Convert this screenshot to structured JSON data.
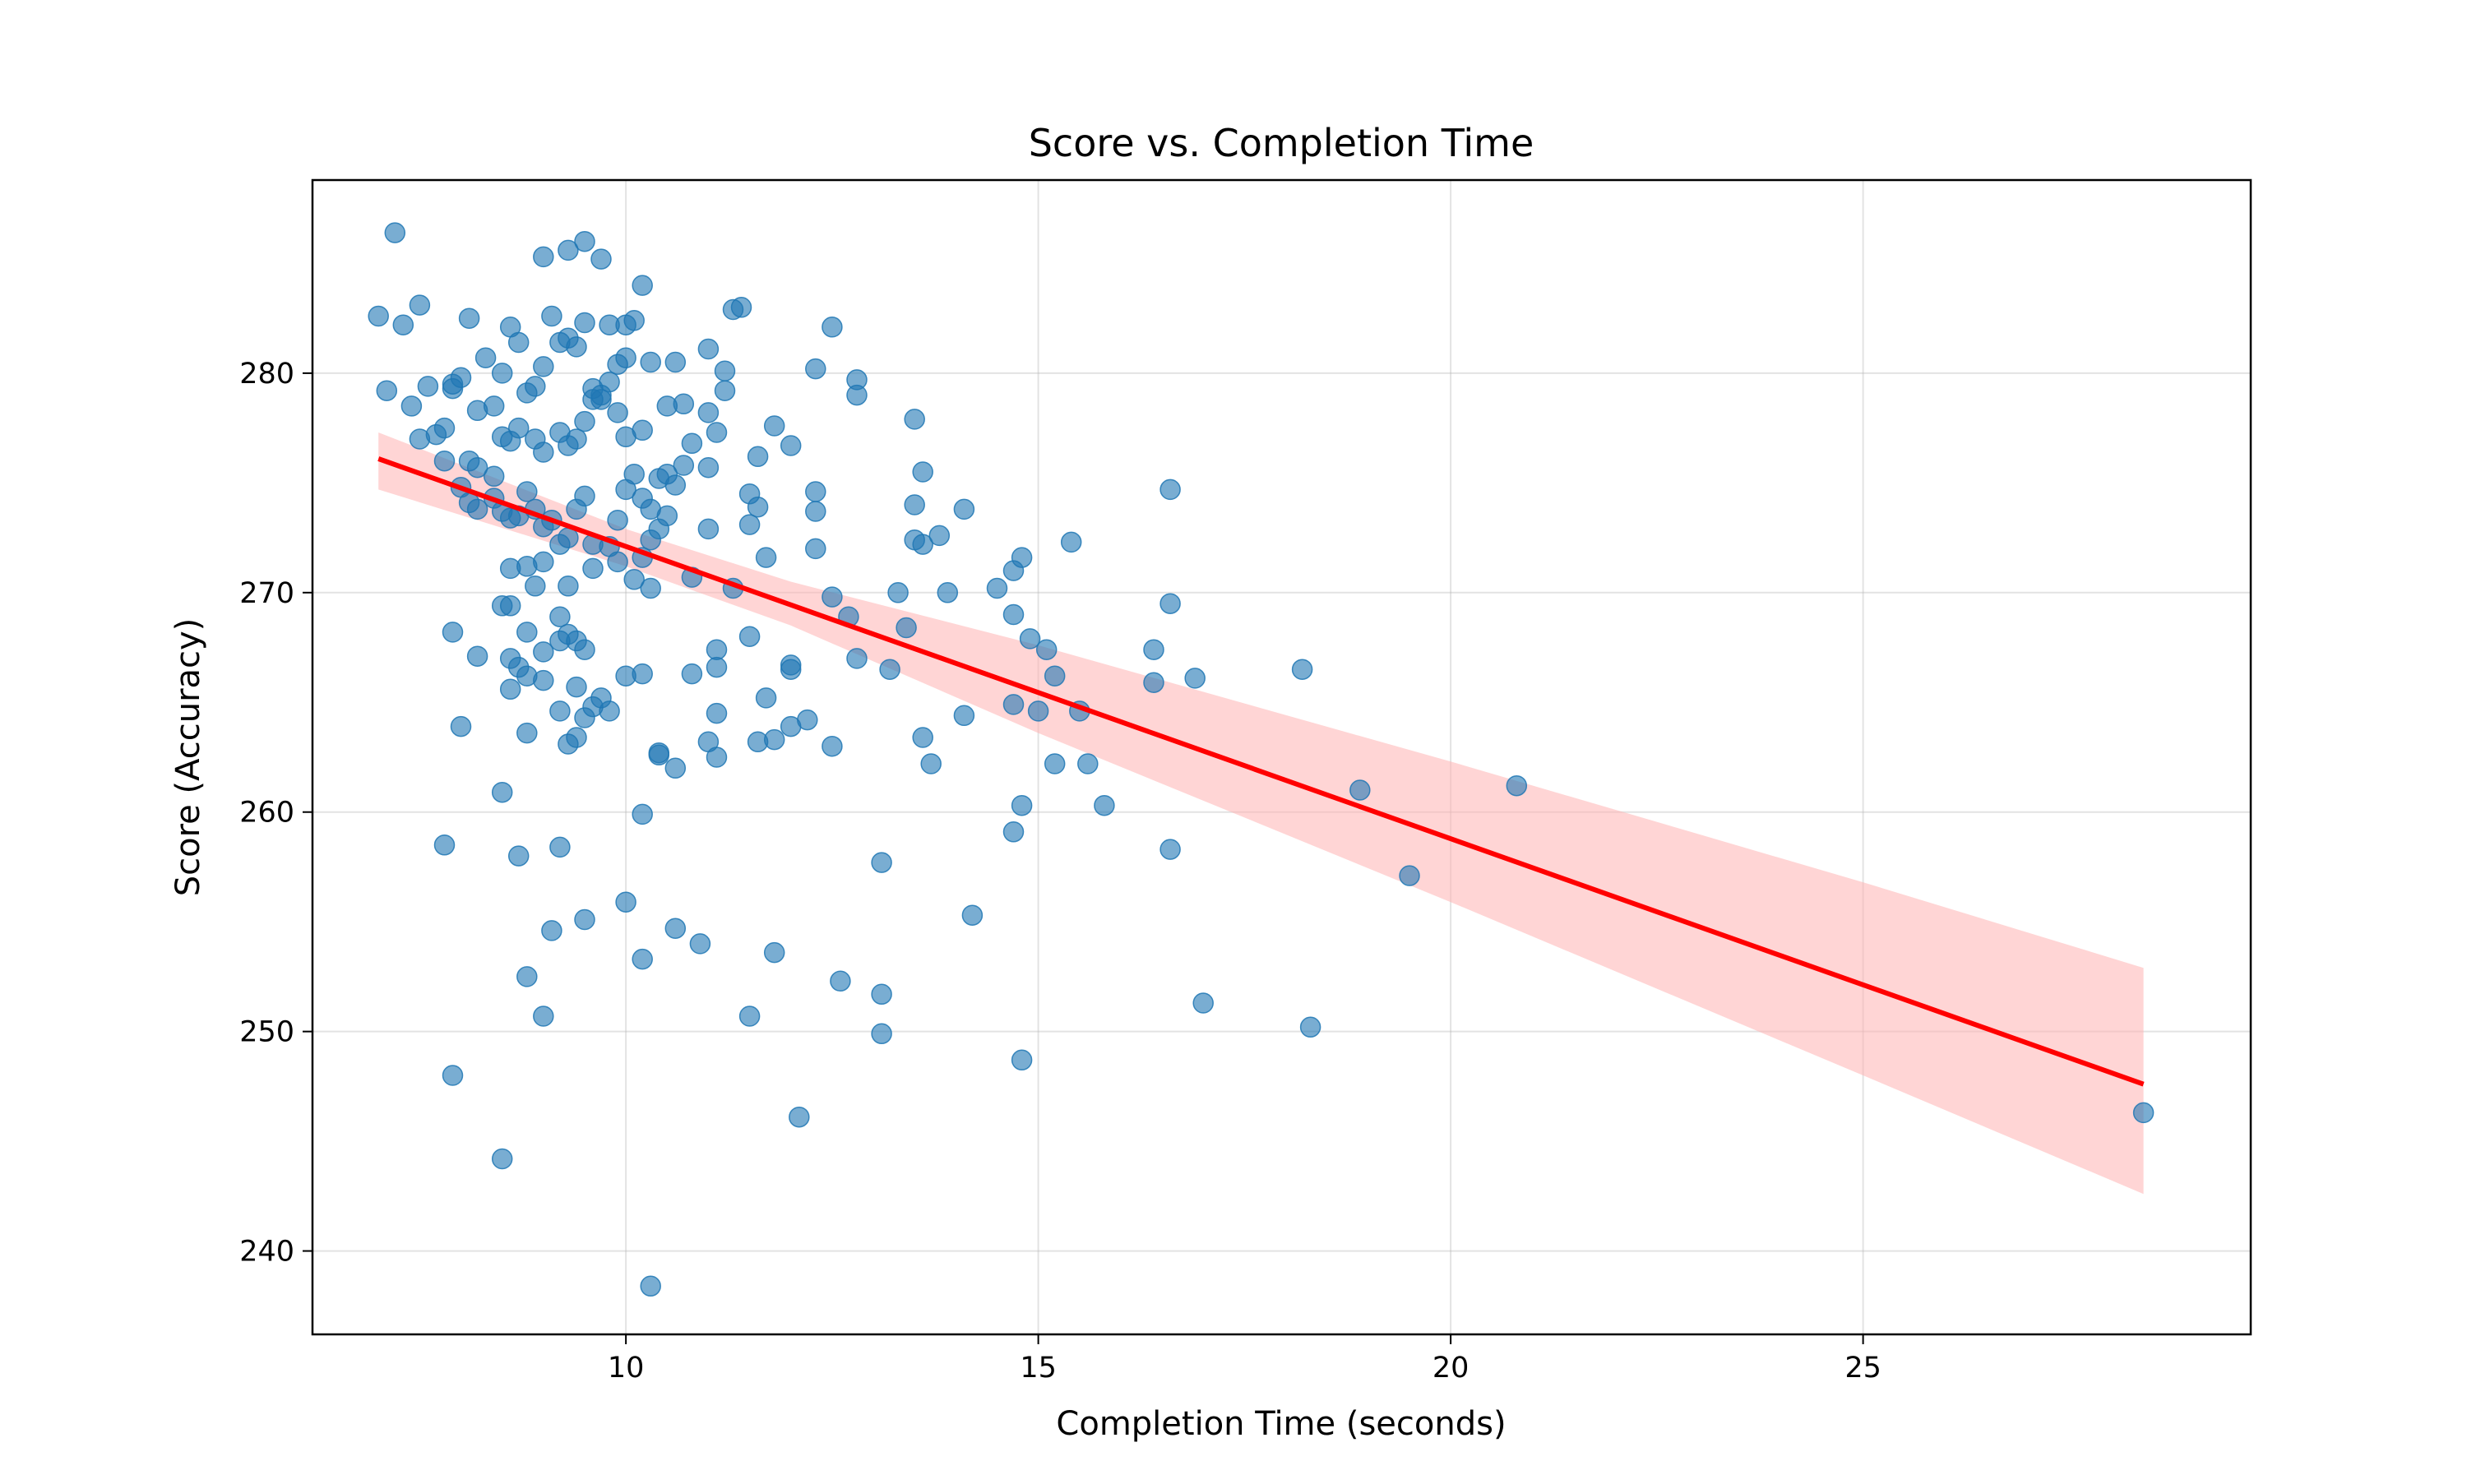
{
  "chart_data": {
    "type": "scatter",
    "title": "Score vs. Completion Time",
    "xlabel": "Completion Time (seconds)",
    "ylabel": "Score (Accuracy)",
    "xlim": [
      6.2,
      29.7
    ],
    "ylim": [
      236.2,
      288.8
    ],
    "xticks": [
      10,
      15,
      20,
      25
    ],
    "yticks": [
      240,
      250,
      260,
      270,
      280
    ],
    "grid": true,
    "colors": {
      "points": "#1f77b4",
      "fit_line": "#ff0000",
      "confidence_band": "#ffb3b3"
    },
    "regression": {
      "x_start": 7.0,
      "y_start": 276.1,
      "x_end": 28.4,
      "y_end": 247.6,
      "band_upper": [
        [
          7.0,
          277.3
        ],
        [
          10.0,
          272.9
        ],
        [
          12.0,
          270.5
        ],
        [
          15.0,
          267.6
        ],
        [
          20.0,
          262.3
        ],
        [
          25.0,
          256.8
        ],
        [
          28.4,
          252.9
        ]
      ],
      "band_lower": [
        [
          7.0,
          274.7
        ],
        [
          10.0,
          271.2
        ],
        [
          12.0,
          268.5
        ],
        [
          15.0,
          263.6
        ],
        [
          20.0,
          255.9
        ],
        [
          25.0,
          248.0
        ],
        [
          28.4,
          242.6
        ]
      ]
    },
    "points": [
      [
        7.0,
        282.6
      ],
      [
        7.2,
        286.4
      ],
      [
        7.3,
        282.2
      ],
      [
        7.5,
        283.1
      ],
      [
        7.1,
        279.2
      ],
      [
        7.4,
        278.5
      ],
      [
        7.5,
        277.0
      ],
      [
        7.7,
        277.2
      ],
      [
        7.8,
        277.5
      ],
      [
        7.9,
        279.5
      ],
      [
        7.6,
        279.4
      ],
      [
        7.9,
        279.3
      ],
      [
        8.0,
        279.8
      ],
      [
        8.1,
        282.5
      ],
      [
        8.3,
        280.7
      ],
      [
        8.2,
        278.3
      ],
      [
        8.4,
        278.5
      ],
      [
        8.5,
        280.0
      ],
      [
        8.6,
        282.1
      ],
      [
        8.7,
        281.4
      ],
      [
        8.8,
        279.1
      ],
      [
        8.9,
        279.4
      ],
      [
        9.0,
        280.3
      ],
      [
        9.1,
        282.6
      ],
      [
        9.2,
        281.4
      ],
      [
        9.3,
        281.6
      ],
      [
        9.4,
        281.2
      ],
      [
        9.5,
        282.3
      ],
      [
        9.6,
        279.3
      ],
      [
        9.7,
        278.8
      ],
      [
        9.8,
        279.6
      ],
      [
        9.9,
        280.4
      ],
      [
        10.0,
        280.7
      ],
      [
        10.1,
        282.4
      ],
      [
        10.2,
        284.0
      ],
      [
        10.3,
        280.5
      ],
      [
        9.0,
        285.3
      ],
      [
        9.3,
        285.6
      ],
      [
        9.5,
        286.0
      ],
      [
        9.7,
        285.2
      ],
      [
        10.0,
        282.2
      ],
      [
        9.8,
        282.2
      ],
      [
        10.6,
        280.5
      ],
      [
        11.0,
        281.1
      ],
      [
        11.2,
        280.1
      ],
      [
        11.3,
        282.9
      ],
      [
        11.4,
        283.0
      ],
      [
        11.2,
        279.2
      ],
      [
        10.5,
        278.5
      ],
      [
        10.7,
        278.6
      ],
      [
        12.3,
        280.2
      ],
      [
        12.5,
        282.1
      ],
      [
        12.8,
        279.7
      ],
      [
        12.8,
        279.0
      ],
      [
        13.5,
        277.9
      ],
      [
        12.0,
        276.7
      ],
      [
        11.8,
        277.6
      ],
      [
        11.6,
        276.2
      ],
      [
        11.1,
        277.3
      ],
      [
        11.0,
        278.2
      ],
      [
        8.1,
        276.0
      ],
      [
        8.2,
        275.7
      ],
      [
        8.4,
        275.3
      ],
      [
        8.5,
        277.1
      ],
      [
        8.7,
        277.5
      ],
      [
        8.6,
        276.9
      ],
      [
        8.9,
        277.0
      ],
      [
        9.0,
        276.4
      ],
      [
        9.2,
        277.3
      ],
      [
        9.3,
        276.7
      ],
      [
        9.4,
        277.0
      ],
      [
        9.5,
        277.8
      ],
      [
        9.6,
        278.8
      ],
      [
        9.7,
        279.0
      ],
      [
        9.9,
        278.2
      ],
      [
        10.0,
        277.1
      ],
      [
        10.2,
        277.4
      ],
      [
        7.8,
        276.0
      ],
      [
        8.0,
        274.8
      ],
      [
        8.1,
        274.1
      ],
      [
        8.2,
        273.8
      ],
      [
        8.4,
        274.3
      ],
      [
        8.5,
        273.7
      ],
      [
        8.6,
        273.4
      ],
      [
        8.7,
        273.5
      ],
      [
        8.8,
        274.6
      ],
      [
        8.9,
        273.8
      ],
      [
        9.0,
        273.0
      ],
      [
        9.1,
        273.3
      ],
      [
        9.2,
        272.2
      ],
      [
        9.3,
        272.5
      ],
      [
        9.4,
        273.8
      ],
      [
        9.5,
        274.4
      ],
      [
        9.6,
        272.2
      ],
      [
        9.8,
        272.1
      ],
      [
        9.9,
        273.3
      ],
      [
        10.0,
        274.7
      ],
      [
        10.1,
        275.4
      ],
      [
        10.2,
        274.3
      ],
      [
        10.3,
        273.8
      ],
      [
        10.4,
        275.2
      ],
      [
        10.5,
        275.4
      ],
      [
        10.6,
        274.9
      ],
      [
        10.7,
        275.8
      ],
      [
        10.8,
        276.8
      ],
      [
        11.0,
        275.7
      ],
      [
        10.3,
        272.4
      ],
      [
        10.4,
        272.9
      ],
      [
        10.5,
        273.5
      ],
      [
        10.2,
        271.6
      ],
      [
        9.9,
        271.4
      ],
      [
        9.6,
        271.1
      ],
      [
        9.3,
        270.3
      ],
      [
        9.0,
        271.4
      ],
      [
        8.8,
        271.2
      ],
      [
        8.6,
        271.1
      ],
      [
        8.9,
        270.3
      ],
      [
        10.1,
        270.6
      ],
      [
        10.3,
        270.2
      ],
      [
        10.8,
        270.7
      ],
      [
        11.0,
        272.9
      ],
      [
        11.3,
        270.2
      ],
      [
        11.5,
        274.5
      ],
      [
        11.6,
        273.9
      ],
      [
        11.5,
        273.1
      ],
      [
        11.7,
        271.6
      ],
      [
        12.3,
        274.6
      ],
      [
        12.3,
        273.7
      ],
      [
        12.3,
        272.0
      ],
      [
        13.6,
        275.5
      ],
      [
        13.5,
        274.0
      ],
      [
        13.5,
        272.4
      ],
      [
        13.6,
        272.2
      ],
      [
        13.8,
        272.6
      ],
      [
        14.1,
        273.8
      ],
      [
        13.3,
        270.0
      ],
      [
        13.9,
        270.0
      ],
      [
        14.5,
        270.2
      ],
      [
        14.7,
        271.0
      ],
      [
        14.8,
        271.6
      ],
      [
        15.4,
        272.3
      ],
      [
        12.5,
        269.8
      ],
      [
        12.7,
        268.9
      ],
      [
        13.4,
        268.4
      ],
      [
        14.7,
        269.0
      ],
      [
        14.9,
        267.9
      ],
      [
        15.1,
        267.4
      ],
      [
        16.6,
        274.7
      ],
      [
        16.6,
        269.5
      ],
      [
        16.4,
        267.4
      ],
      [
        16.9,
        266.1
      ],
      [
        16.4,
        265.9
      ],
      [
        15.2,
        266.2
      ],
      [
        15.5,
        264.6
      ],
      [
        14.7,
        264.9
      ],
      [
        15.0,
        264.6
      ],
      [
        18.2,
        266.5
      ],
      [
        8.5,
        269.4
      ],
      [
        8.6,
        269.4
      ],
      [
        8.6,
        267.0
      ],
      [
        8.7,
        266.6
      ],
      [
        8.8,
        268.2
      ],
      [
        9.0,
        267.3
      ],
      [
        9.2,
        268.9
      ],
      [
        9.3,
        268.1
      ],
      [
        9.2,
        267.8
      ],
      [
        9.4,
        267.8
      ],
      [
        9.5,
        267.4
      ],
      [
        10.0,
        266.2
      ],
      [
        10.2,
        266.3
      ],
      [
        10.8,
        266.3
      ],
      [
        11.1,
        267.4
      ],
      [
        11.1,
        266.6
      ],
      [
        11.5,
        268.0
      ],
      [
        12.0,
        266.7
      ],
      [
        12.0,
        266.5
      ],
      [
        12.8,
        267.0
      ],
      [
        13.2,
        266.5
      ],
      [
        7.9,
        268.2
      ],
      [
        8.2,
        267.1
      ],
      [
        8.6,
        265.6
      ],
      [
        8.8,
        266.2
      ],
      [
        9.0,
        266.0
      ],
      [
        9.2,
        264.6
      ],
      [
        9.4,
        265.7
      ],
      [
        9.5,
        264.3
      ],
      [
        9.6,
        264.8
      ],
      [
        9.7,
        265.2
      ],
      [
        9.8,
        264.6
      ],
      [
        8.8,
        263.6
      ],
      [
        9.3,
        263.1
      ],
      [
        9.4,
        263.4
      ],
      [
        10.4,
        262.7
      ],
      [
        10.4,
        262.6
      ],
      [
        10.6,
        262.0
      ],
      [
        11.0,
        263.2
      ],
      [
        11.1,
        262.5
      ],
      [
        11.1,
        264.5
      ],
      [
        11.6,
        263.2
      ],
      [
        11.7,
        265.2
      ],
      [
        11.8,
        263.3
      ],
      [
        12.0,
        263.9
      ],
      [
        12.2,
        264.2
      ],
      [
        12.5,
        263.0
      ],
      [
        13.6,
        263.4
      ],
      [
        13.7,
        262.2
      ],
      [
        14.1,
        264.4
      ],
      [
        15.2,
        262.2
      ],
      [
        15.6,
        262.2
      ],
      [
        8.0,
        263.9
      ],
      [
        8.5,
        260.9
      ],
      [
        10.2,
        259.9
      ],
      [
        14.7,
        259.1
      ],
      [
        14.8,
        260.3
      ],
      [
        15.8,
        260.3
      ],
      [
        18.9,
        261.0
      ],
      [
        20.8,
        261.2
      ],
      [
        7.8,
        258.5
      ],
      [
        8.7,
        258.0
      ],
      [
        9.2,
        258.4
      ],
      [
        13.1,
        257.7
      ],
      [
        16.6,
        258.3
      ],
      [
        19.5,
        257.1
      ],
      [
        9.5,
        255.1
      ],
      [
        9.1,
        254.6
      ],
      [
        10.0,
        255.9
      ],
      [
        10.6,
        254.7
      ],
      [
        10.9,
        254.0
      ],
      [
        11.8,
        253.6
      ],
      [
        14.2,
        255.3
      ],
      [
        8.8,
        252.5
      ],
      [
        10.2,
        253.3
      ],
      [
        12.6,
        252.3
      ],
      [
        13.1,
        251.7
      ],
      [
        9.0,
        250.7
      ],
      [
        11.5,
        250.7
      ],
      [
        13.1,
        249.9
      ],
      [
        14.8,
        248.7
      ],
      [
        17.0,
        251.3
      ],
      [
        18.3,
        250.2
      ],
      [
        7.9,
        248.0
      ],
      [
        8.5,
        244.2
      ],
      [
        12.1,
        246.1
      ],
      [
        28.4,
        246.3
      ],
      [
        10.3,
        238.4
      ]
    ]
  }
}
